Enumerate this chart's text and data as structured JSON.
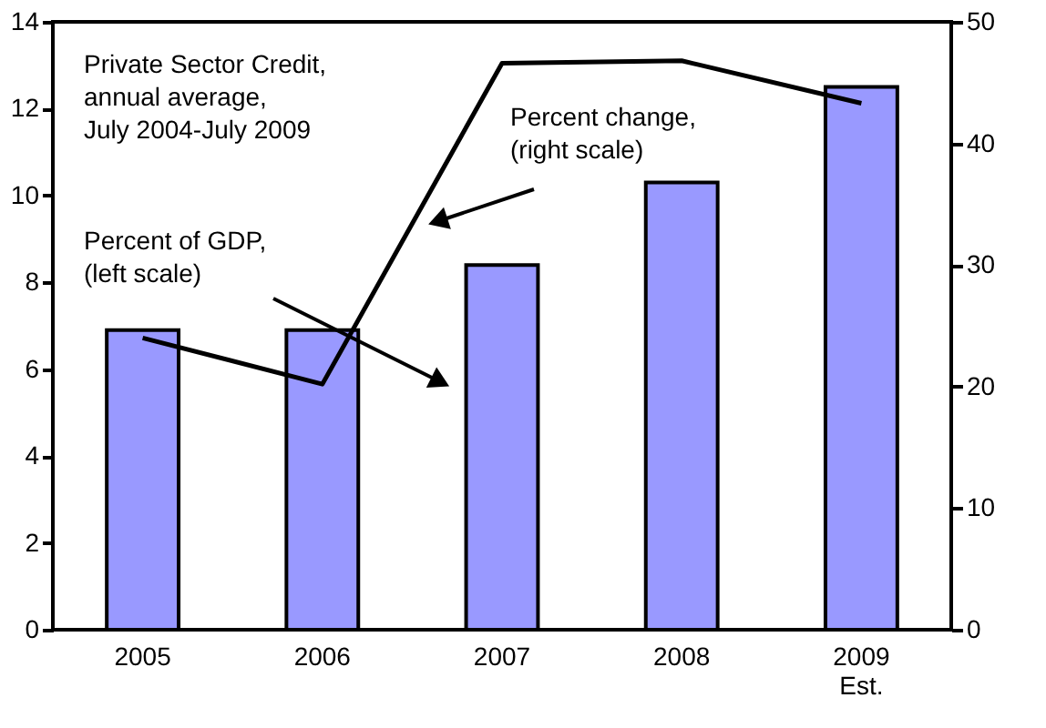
{
  "chart_data": {
    "type": "bar",
    "categories": [
      "2005",
      "2006",
      "2007",
      "2008",
      "2009\nEst."
    ],
    "series": [
      {
        "color": "#9999ff",
        "values": [
          6.9,
          6.9,
          8.4,
          10.3,
          12.5
        ]
      },
      {
        "type": "line",
        "axis": "y2",
        "color": "#000000",
        "values": [
          24.0,
          20.2,
          46.6,
          46.8,
          43.3
        ]
      }
    ],
    "ylim": [
      0,
      14
    ],
    "yticks": [
      0,
      2,
      4,
      6,
      8,
      10,
      12,
      14
    ],
    "y2lim": [
      0,
      50
    ],
    "y2ticks": [
      0,
      10,
      20,
      30,
      40,
      50
    ],
    "grid": false,
    "marker": "none",
    "line_style": "solid",
    "annotations": [
      "Private Sector Credit,\nannual average,\nJuly 2004-July 2009",
      "Percent change,\n(right scale)",
      "Percent of GDP,\n(left scale)"
    ]
  }
}
